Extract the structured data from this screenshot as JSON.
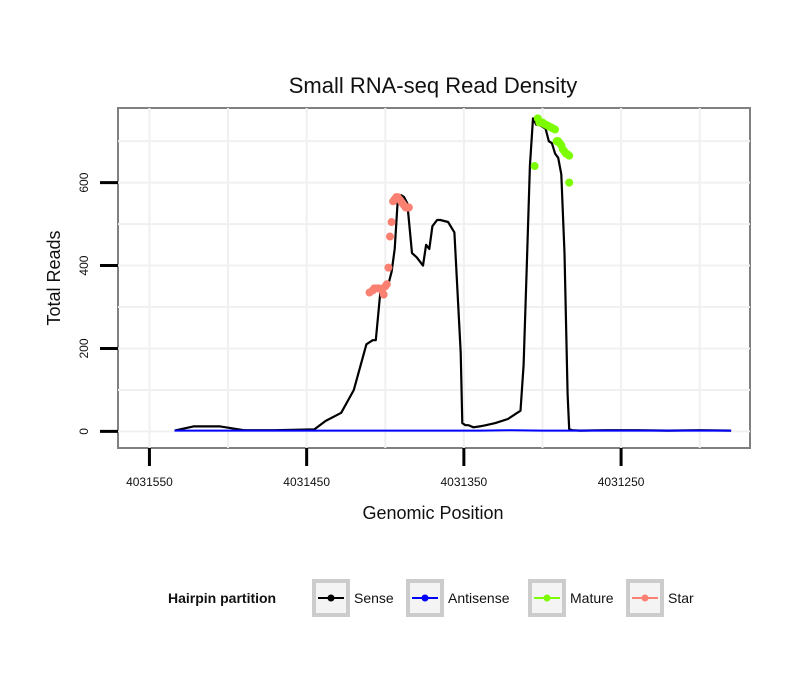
{
  "chart_data": {
    "type": "line",
    "title": "Small RNA-seq Read Density",
    "xlabel": "Genomic Position",
    "ylabel": "Total Reads",
    "x_reversed": true,
    "xlim": [
      4031570,
      4031168
    ],
    "ylim": [
      -40,
      780
    ],
    "x_ticks": [
      4031550,
      4031450,
      4031350,
      4031250
    ],
    "x_tick_labels": [
      "4031550",
      "4031450",
      "4031350",
      "4031250"
    ],
    "y_ticks": [
      0,
      200,
      400,
      600
    ],
    "y_tick_labels": [
      "0",
      "200",
      "400",
      "600"
    ],
    "grid": true,
    "legend": {
      "title": "Hairpin partition",
      "position": "bottom",
      "entries": [
        {
          "label": "Sense",
          "color": "#000000"
        },
        {
          "label": "Antisense",
          "color": "#0000ff"
        },
        {
          "label": "Mature",
          "color": "#7cfc00"
        },
        {
          "label": "Star",
          "color": "#fa8072"
        }
      ]
    },
    "series": [
      {
        "name": "Sense",
        "color": "#000000",
        "x": [
          4031534,
          4031522,
          4031505,
          4031490,
          4031470,
          4031445,
          4031438,
          4031428,
          4031420,
          4031412,
          4031408,
          4031406,
          4031403,
          4031401,
          4031400,
          4031398,
          4031396,
          4031394,
          4031392,
          4031390,
          4031388,
          4031386,
          4031383,
          4031380,
          4031376,
          4031374,
          4031372,
          4031370,
          4031367,
          4031365,
          4031360,
          4031356,
          4031352,
          4031351,
          4031349,
          4031347,
          4031344,
          4031340,
          4031336,
          4031330,
          4031322,
          4031314,
          4031312,
          4031310,
          4031308,
          4031306,
          4031304,
          4031302,
          4031300,
          4031298,
          4031296,
          4031294,
          4031292,
          4031290,
          4031288,
          4031286,
          4031284,
          4031283,
          4031281,
          4031276,
          4031260,
          4031240,
          4031220,
          4031200,
          4031180
        ],
        "y": [
          2,
          12,
          12,
          3,
          3,
          5,
          25,
          45,
          100,
          210,
          220,
          220,
          340,
          345,
          350,
          355,
          385,
          440,
          560,
          570,
          565,
          550,
          430,
          420,
          400,
          450,
          440,
          495,
          510,
          510,
          505,
          480,
          190,
          20,
          15,
          15,
          10,
          12,
          15,
          20,
          30,
          50,
          160,
          400,
          640,
          755,
          740,
          740,
          735,
          730,
          700,
          695,
          670,
          660,
          620,
          430,
          90,
          5,
          3,
          2,
          3,
          3,
          2,
          3,
          2
        ]
      },
      {
        "name": "Antisense",
        "color": "#0000ff",
        "x": [
          4031534,
          4031400,
          4031340,
          4031320,
          4031300,
          4031180
        ],
        "y": [
          2,
          2,
          2,
          3,
          2,
          2
        ]
      },
      {
        "name": "Mature",
        "color": "#7cfc00",
        "x": [
          4031305,
          4031303,
          4031302,
          4031300,
          4031299,
          4031298,
          4031297,
          4031296,
          4031295,
          4031294,
          4031293,
          4031292,
          4031291,
          4031290,
          4031289,
          4031288,
          4031287,
          4031286,
          4031285,
          4031284,
          4031283,
          4031283
        ],
        "y": [
          640,
          755,
          745,
          745,
          742,
          740,
          738,
          736,
          734,
          732,
          730,
          728,
          700,
          700,
          695,
          690,
          680,
          675,
          670,
          668,
          665,
          600
        ]
      },
      {
        "name": "Star",
        "color": "#fa8072",
        "x": [
          4031410,
          4031408,
          4031407,
          4031405,
          4031404,
          4031402,
          4031401,
          4031400,
          4031399,
          4031398,
          4031397,
          4031396,
          4031395,
          4031394,
          4031393,
          4031392,
          4031391,
          4031390,
          4031389,
          4031388,
          4031387,
          4031386,
          4031385
        ],
        "y": [
          335,
          340,
          345,
          345,
          345,
          340,
          330,
          350,
          355,
          395,
          470,
          505,
          555,
          560,
          565,
          565,
          560,
          555,
          550,
          545,
          540,
          540,
          540
        ]
      }
    ]
  }
}
